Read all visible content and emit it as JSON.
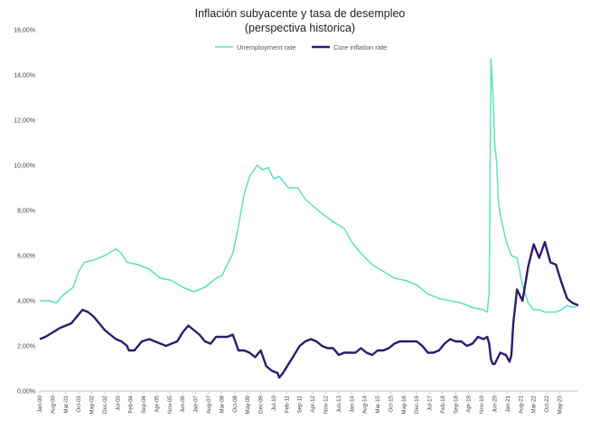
{
  "chart_data": {
    "type": "line",
    "title": "Inflación subyacente y tasa de desempleo",
    "subtitle": "(perspectiva historica)",
    "xlabel": "",
    "ylabel": "",
    "ylim": [
      0,
      16
    ],
    "y_ticks": [
      "0,00%",
      "2,00%",
      "4,00%",
      "6,00%",
      "8,00%",
      "10,00%",
      "12,00%",
      "14,00%",
      "16,00%"
    ],
    "x_range": [
      "2000-01",
      "2024-03"
    ],
    "x_ticks": [
      "Jan-00",
      "Aug-00",
      "Mar-01",
      "Oct-01",
      "May-02",
      "Dec-02",
      "Jul-03",
      "Feb-04",
      "Sep-04",
      "Apr-05",
      "Nov-05",
      "Jun-06",
      "Jan-07",
      "Aug-07",
      "Mar-08",
      "Oct-08",
      "May-09",
      "Dec-09",
      "Jul-10",
      "Feb-11",
      "Sep-11",
      "Apr-12",
      "Nov-12",
      "Jun-13",
      "Jan-14",
      "Aug-14",
      "Mar-15",
      "Oct-15",
      "May-16",
      "Dec-16",
      "Jul-17",
      "Feb-18",
      "Sep-18",
      "Apr-19",
      "Nov-19",
      "Jun-20",
      "Jan-21",
      "Aug-21",
      "Mar-22",
      "Oct-22",
      "May-23"
    ],
    "grid": false,
    "legend_position": "top-center",
    "series": [
      {
        "name": "Unemployment rate",
        "color": "#5ee0c0",
        "points": [
          [
            "2000-01",
            4.0
          ],
          [
            "2000-06",
            4.0
          ],
          [
            "2000-10",
            3.9
          ],
          [
            "2001-01",
            4.2
          ],
          [
            "2001-04",
            4.4
          ],
          [
            "2001-07",
            4.6
          ],
          [
            "2001-10",
            5.3
          ],
          [
            "2002-01",
            5.7
          ],
          [
            "2002-06",
            5.8
          ],
          [
            "2002-12",
            6.0
          ],
          [
            "2003-06",
            6.3
          ],
          [
            "2003-09",
            6.1
          ],
          [
            "2003-12",
            5.7
          ],
          [
            "2004-06",
            5.6
          ],
          [
            "2004-12",
            5.4
          ],
          [
            "2005-06",
            5.0
          ],
          [
            "2005-12",
            4.9
          ],
          [
            "2006-06",
            4.6
          ],
          [
            "2006-12",
            4.4
          ],
          [
            "2007-06",
            4.6
          ],
          [
            "2007-12",
            5.0
          ],
          [
            "2008-03",
            5.1
          ],
          [
            "2008-06",
            5.6
          ],
          [
            "2008-09",
            6.1
          ],
          [
            "2008-12",
            7.3
          ],
          [
            "2009-03",
            8.7
          ],
          [
            "2009-06",
            9.5
          ],
          [
            "2009-10",
            10.0
          ],
          [
            "2010-01",
            9.8
          ],
          [
            "2010-04",
            9.9
          ],
          [
            "2010-07",
            9.4
          ],
          [
            "2010-10",
            9.5
          ],
          [
            "2010-12",
            9.3
          ],
          [
            "2011-03",
            9.0
          ],
          [
            "2011-08",
            9.0
          ],
          [
            "2011-12",
            8.5
          ],
          [
            "2012-04",
            8.2
          ],
          [
            "2012-10",
            7.8
          ],
          [
            "2013-03",
            7.5
          ],
          [
            "2013-09",
            7.2
          ],
          [
            "2014-01",
            6.6
          ],
          [
            "2014-06",
            6.1
          ],
          [
            "2014-12",
            5.6
          ],
          [
            "2015-06",
            5.3
          ],
          [
            "2015-12",
            5.0
          ],
          [
            "2016-06",
            4.9
          ],
          [
            "2016-12",
            4.7
          ],
          [
            "2017-06",
            4.3
          ],
          [
            "2017-12",
            4.1
          ],
          [
            "2018-06",
            4.0
          ],
          [
            "2018-12",
            3.9
          ],
          [
            "2019-06",
            3.7
          ],
          [
            "2019-12",
            3.6
          ],
          [
            "2020-02",
            3.5
          ],
          [
            "2020-03",
            4.4
          ],
          [
            "2020-04",
            14.7
          ],
          [
            "2020-05",
            13.2
          ],
          [
            "2020-06",
            11.0
          ],
          [
            "2020-07",
            10.2
          ],
          [
            "2020-08",
            8.4
          ],
          [
            "2020-09",
            7.8
          ],
          [
            "2020-12",
            6.7
          ],
          [
            "2021-03",
            6.0
          ],
          [
            "2021-06",
            5.9
          ],
          [
            "2021-09",
            4.7
          ],
          [
            "2021-12",
            3.9
          ],
          [
            "2022-03",
            3.6
          ],
          [
            "2022-06",
            3.6
          ],
          [
            "2022-09",
            3.5
          ],
          [
            "2022-12",
            3.5
          ],
          [
            "2023-03",
            3.5
          ],
          [
            "2023-06",
            3.6
          ],
          [
            "2023-09",
            3.8
          ],
          [
            "2023-12",
            3.7
          ],
          [
            "2024-03",
            3.8
          ]
        ]
      },
      {
        "name": "Core inflation rate",
        "color": "#2e1a6e",
        "points": [
          [
            "2000-01",
            2.3
          ],
          [
            "2000-04",
            2.4
          ],
          [
            "2000-08",
            2.6
          ],
          [
            "2000-12",
            2.8
          ],
          [
            "2001-03",
            2.9
          ],
          [
            "2001-06",
            3.0
          ],
          [
            "2001-09",
            3.3
          ],
          [
            "2001-12",
            3.6
          ],
          [
            "2002-03",
            3.5
          ],
          [
            "2002-06",
            3.3
          ],
          [
            "2002-09",
            3.0
          ],
          [
            "2002-12",
            2.7
          ],
          [
            "2003-03",
            2.5
          ],
          [
            "2003-06",
            2.3
          ],
          [
            "2003-09",
            2.2
          ],
          [
            "2003-12",
            2.0
          ],
          [
            "2004-01",
            1.8
          ],
          [
            "2004-04",
            1.8
          ],
          [
            "2004-08",
            2.2
          ],
          [
            "2004-12",
            2.3
          ],
          [
            "2005-03",
            2.2
          ],
          [
            "2005-06",
            2.1
          ],
          [
            "2005-09",
            2.0
          ],
          [
            "2005-12",
            2.1
          ],
          [
            "2006-03",
            2.2
          ],
          [
            "2006-06",
            2.6
          ],
          [
            "2006-09",
            2.9
          ],
          [
            "2006-12",
            2.7
          ],
          [
            "2007-03",
            2.5
          ],
          [
            "2007-06",
            2.2
          ],
          [
            "2007-09",
            2.1
          ],
          [
            "2007-12",
            2.4
          ],
          [
            "2008-03",
            2.4
          ],
          [
            "2008-06",
            2.4
          ],
          [
            "2008-09",
            2.5
          ],
          [
            "2008-12",
            1.8
          ],
          [
            "2009-03",
            1.8
          ],
          [
            "2009-06",
            1.7
          ],
          [
            "2009-09",
            1.5
          ],
          [
            "2009-12",
            1.8
          ],
          [
            "2010-03",
            1.1
          ],
          [
            "2010-06",
            0.9
          ],
          [
            "2010-09",
            0.8
          ],
          [
            "2010-10",
            0.6
          ],
          [
            "2010-12",
            0.8
          ],
          [
            "2011-03",
            1.2
          ],
          [
            "2011-06",
            1.6
          ],
          [
            "2011-09",
            2.0
          ],
          [
            "2011-12",
            2.2
          ],
          [
            "2012-03",
            2.3
          ],
          [
            "2012-06",
            2.2
          ],
          [
            "2012-09",
            2.0
          ],
          [
            "2012-12",
            1.9
          ],
          [
            "2013-03",
            1.9
          ],
          [
            "2013-06",
            1.6
          ],
          [
            "2013-09",
            1.7
          ],
          [
            "2013-12",
            1.7
          ],
          [
            "2014-03",
            1.7
          ],
          [
            "2014-06",
            1.9
          ],
          [
            "2014-09",
            1.7
          ],
          [
            "2014-12",
            1.6
          ],
          [
            "2015-03",
            1.8
          ],
          [
            "2015-06",
            1.8
          ],
          [
            "2015-09",
            1.9
          ],
          [
            "2015-12",
            2.1
          ],
          [
            "2016-03",
            2.2
          ],
          [
            "2016-06",
            2.2
          ],
          [
            "2016-09",
            2.2
          ],
          [
            "2016-12",
            2.2
          ],
          [
            "2017-03",
            2.0
          ],
          [
            "2017-06",
            1.7
          ],
          [
            "2017-09",
            1.7
          ],
          [
            "2017-12",
            1.8
          ],
          [
            "2018-03",
            2.1
          ],
          [
            "2018-06",
            2.3
          ],
          [
            "2018-09",
            2.2
          ],
          [
            "2018-12",
            2.2
          ],
          [
            "2019-03",
            2.0
          ],
          [
            "2019-06",
            2.1
          ],
          [
            "2019-09",
            2.4
          ],
          [
            "2019-12",
            2.3
          ],
          [
            "2020-02",
            2.4
          ],
          [
            "2020-03",
            2.1
          ],
          [
            "2020-04",
            1.4
          ],
          [
            "2020-05",
            1.2
          ],
          [
            "2020-06",
            1.2
          ],
          [
            "2020-09",
            1.7
          ],
          [
            "2020-12",
            1.6
          ],
          [
            "2021-02",
            1.3
          ],
          [
            "2021-03",
            1.6
          ],
          [
            "2021-04",
            3.0
          ],
          [
            "2021-06",
            4.5
          ],
          [
            "2021-09",
            4.0
          ],
          [
            "2021-12",
            5.5
          ],
          [
            "2022-03",
            6.5
          ],
          [
            "2022-06",
            5.9
          ],
          [
            "2022-09",
            6.6
          ],
          [
            "2022-12",
            5.7
          ],
          [
            "2023-03",
            5.6
          ],
          [
            "2023-06",
            4.8
          ],
          [
            "2023-09",
            4.1
          ],
          [
            "2023-12",
            3.9
          ],
          [
            "2024-03",
            3.8
          ]
        ]
      }
    ]
  }
}
